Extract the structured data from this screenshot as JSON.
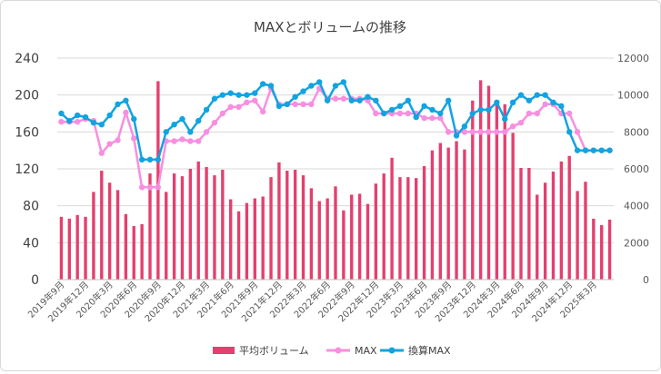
{
  "chart_data": {
    "type": "bar",
    "title": "MAXとボリュームの推移",
    "x_tick_labels": [
      "2019年9月",
      "2019年12月",
      "2020年3月",
      "2020年6月",
      "2020年9月",
      "2020年12月",
      "2021年3月",
      "2021年6月",
      "2021年9月",
      "2021年12月",
      "2022年3月",
      "2022年6月",
      "2022年9月",
      "2022年12月",
      "2023年3月",
      "2023年6月",
      "2023年9月",
      "2023年12月",
      "2024年3月",
      "2024年6月",
      "2024年9月",
      "2024年12月",
      "2025年3月"
    ],
    "y_left": {
      "min": 0,
      "max": 240,
      "ticks": [
        0,
        40,
        80,
        120,
        160,
        200,
        240
      ]
    },
    "y_right": {
      "min": 0,
      "max": 12000,
      "ticks": [
        0,
        2000,
        4000,
        6000,
        8000,
        10000,
        12000
      ]
    },
    "grid": true,
    "legend_position": "bottom",
    "series": [
      {
        "name": "平均ボリューム",
        "type": "bar",
        "axis": "left",
        "color": "#e3406f",
        "values": [
          68,
          66,
          70,
          68,
          95,
          118,
          105,
          97,
          71,
          58,
          60,
          115,
          215,
          95,
          115,
          112,
          120,
          128,
          122,
          113,
          119,
          87,
          74,
          83,
          88,
          90,
          111,
          127,
          118,
          119,
          113,
          99,
          85,
          88,
          101,
          75,
          92,
          93,
          82,
          104,
          115,
          132,
          111,
          111,
          110,
          123,
          140,
          148,
          143,
          150,
          141,
          194,
          216,
          210,
          190,
          190,
          159,
          121,
          121,
          92,
          105,
          117,
          128,
          134,
          96,
          106,
          66,
          59,
          65
        ]
      },
      {
        "name": "MAX",
        "type": "line",
        "axis": "left",
        "color": "#f78fe0",
        "values": [
          171,
          171,
          171,
          174,
          172,
          137,
          147,
          151,
          181,
          153,
          100,
          100,
          100,
          150,
          150,
          152,
          150,
          150,
          160,
          170,
          180,
          187,
          187,
          192,
          194,
          182,
          207,
          190,
          190,
          190,
          190,
          190,
          207,
          196,
          196,
          196,
          196,
          196,
          194,
          180,
          180,
          180,
          180,
          180,
          180,
          175,
          175,
          175,
          160,
          160,
          160,
          160,
          160,
          160,
          160,
          160,
          166,
          170,
          180,
          180,
          190,
          190,
          180,
          180,
          160,
          140,
          140,
          140,
          140
        ]
      },
      {
        "name": "換算MAX",
        "type": "line",
        "axis": "right",
        "color": "#12a3e1",
        "values": [
          9000,
          8600,
          8900,
          8800,
          8500,
          8400,
          8900,
          9500,
          9700,
          8700,
          6500,
          6500,
          6500,
          8000,
          8400,
          8700,
          8000,
          8600,
          9200,
          9800,
          10000,
          10100,
          10000,
          10000,
          10100,
          10600,
          10500,
          9400,
          9500,
          9900,
          10200,
          10500,
          10700,
          9700,
          10500,
          10700,
          9700,
          9700,
          9900,
          9700,
          9000,
          9200,
          9400,
          9700,
          8800,
          9400,
          9200,
          9000,
          9700,
          7800,
          8300,
          9000,
          9200,
          9200,
          9600,
          8700,
          9600,
          10000,
          9700,
          10000,
          10000,
          9600,
          9400,
          8000,
          7000,
          7000,
          7000,
          7000,
          7000
        ]
      }
    ]
  }
}
